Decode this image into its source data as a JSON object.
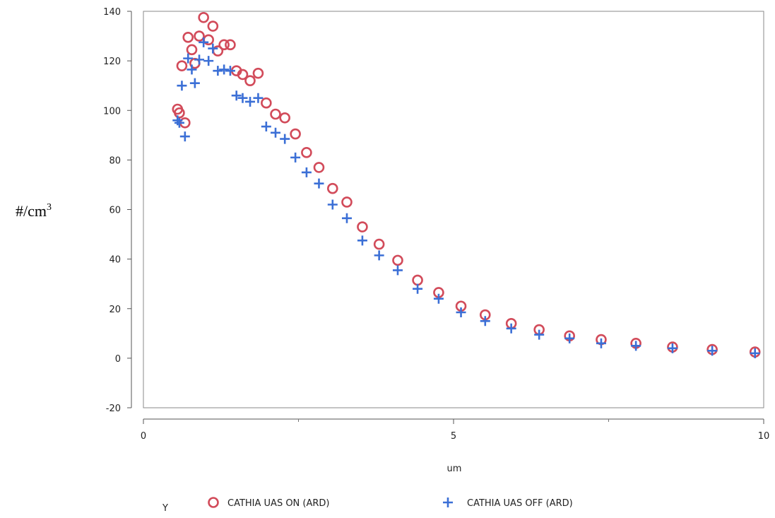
{
  "chart_data": {
    "type": "scatter",
    "title": "",
    "xlabel": "um",
    "ylabel_base": "#/cm",
    "ylabel_sup": "3",
    "xlim": [
      0,
      10
    ],
    "ylim": [
      -20,
      140
    ],
    "x_ticks": [
      0,
      5,
      10
    ],
    "x_ticks_minor": [
      2.5,
      7.5
    ],
    "y_ticks": [
      -20,
      0,
      20,
      40,
      60,
      80,
      100,
      120,
      140
    ],
    "grid": false,
    "legend_title": "Y",
    "legend_position": "bottom",
    "series": [
      {
        "name": "CATHIA UAS ON (ARD)",
        "marker": "circle",
        "color": "#d24b5a",
        "points": [
          [
            0.55,
            100.5
          ],
          [
            0.58,
            99
          ],
          [
            0.62,
            118
          ],
          [
            0.67,
            95
          ],
          [
            0.72,
            129.5
          ],
          [
            0.78,
            124.5
          ],
          [
            0.83,
            119
          ],
          [
            0.9,
            130
          ],
          [
            0.97,
            137.5
          ],
          [
            1.05,
            128.5
          ],
          [
            1.12,
            134
          ],
          [
            1.2,
            124
          ],
          [
            1.3,
            126.5
          ],
          [
            1.4,
            126.5
          ],
          [
            1.5,
            116
          ],
          [
            1.6,
            114.5
          ],
          [
            1.72,
            112
          ],
          [
            1.85,
            115
          ],
          [
            1.98,
            103
          ],
          [
            2.13,
            98.5
          ],
          [
            2.28,
            97
          ],
          [
            2.45,
            90.5
          ],
          [
            2.63,
            83
          ],
          [
            2.83,
            77
          ],
          [
            3.05,
            68.5
          ],
          [
            3.28,
            63
          ],
          [
            3.53,
            53
          ],
          [
            3.8,
            46
          ],
          [
            4.1,
            39.5
          ],
          [
            4.42,
            31.5
          ],
          [
            4.76,
            26.5
          ],
          [
            5.12,
            21
          ],
          [
            5.51,
            17.5
          ],
          [
            5.93,
            14
          ],
          [
            6.38,
            11.5
          ],
          [
            6.87,
            9
          ],
          [
            7.38,
            7.5
          ],
          [
            7.94,
            6
          ],
          [
            8.53,
            4.5
          ],
          [
            9.17,
            3.5
          ],
          [
            9.86,
            2.5
          ]
        ]
      },
      {
        "name": "CATHIA UAS OFF (ARD)",
        "marker": "plus",
        "color": "#3b6fd6",
        "points": [
          [
            0.55,
            96
          ],
          [
            0.58,
            95
          ],
          [
            0.62,
            110
          ],
          [
            0.67,
            89.5
          ],
          [
            0.72,
            121
          ],
          [
            0.78,
            116.5
          ],
          [
            0.83,
            111
          ],
          [
            0.9,
            120.5
          ],
          [
            0.97,
            127.5
          ],
          [
            1.05,
            120
          ],
          [
            1.12,
            125
          ],
          [
            1.2,
            116
          ],
          [
            1.3,
            116.5
          ],
          [
            1.4,
            116
          ],
          [
            1.5,
            106
          ],
          [
            1.6,
            105
          ],
          [
            1.72,
            103.5
          ],
          [
            1.85,
            105
          ],
          [
            1.98,
            93.5
          ],
          [
            2.13,
            91
          ],
          [
            2.28,
            88.5
          ],
          [
            2.45,
            81
          ],
          [
            2.63,
            75
          ],
          [
            2.83,
            70.5
          ],
          [
            3.05,
            62
          ],
          [
            3.28,
            56.5
          ],
          [
            3.53,
            47.5
          ],
          [
            3.8,
            41.5
          ],
          [
            4.1,
            35.5
          ],
          [
            4.42,
            28
          ],
          [
            4.76,
            24
          ],
          [
            5.12,
            18.5
          ],
          [
            5.51,
            15
          ],
          [
            5.93,
            12
          ],
          [
            6.38,
            9.5
          ],
          [
            6.87,
            8
          ],
          [
            7.38,
            6
          ],
          [
            7.94,
            5
          ],
          [
            8.53,
            4
          ],
          [
            9.17,
            3
          ],
          [
            9.86,
            2
          ]
        ]
      }
    ]
  }
}
